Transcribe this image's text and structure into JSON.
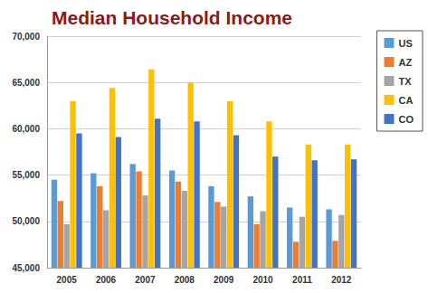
{
  "chart_data": {
    "type": "bar",
    "title": "Median Household Income",
    "categories": [
      "2005",
      "2006",
      "2007",
      "2008",
      "2009",
      "2010",
      "2011",
      "2012"
    ],
    "series": [
      {
        "name": "US",
        "color": "#5b9bd5",
        "values": [
          54500,
          55200,
          56200,
          55500,
          53800,
          52700,
          51500,
          51300
        ]
      },
      {
        "name": "AZ",
        "color": "#ed7d31",
        "values": [
          52200,
          53800,
          55400,
          54300,
          52100,
          49700,
          47800,
          47900
        ]
      },
      {
        "name": "TX",
        "color": "#a5a5a5",
        "values": [
          49700,
          51200,
          52800,
          53300,
          51600,
          51100,
          50500,
          50700
        ]
      },
      {
        "name": "CA",
        "color": "#ffc000",
        "values": [
          63000,
          64400,
          66400,
          65000,
          63000,
          60800,
          58300,
          58300
        ]
      },
      {
        "name": "CO",
        "color": "#4472c4",
        "values": [
          59500,
          59100,
          61100,
          60800,
          59300,
          57000,
          56600,
          56700
        ]
      }
    ],
    "ylim": [
      45000,
      70000
    ],
    "yticks": [
      {
        "value": 45000,
        "label": "45,000"
      },
      {
        "value": 50000,
        "label": "50,000"
      },
      {
        "value": 55000,
        "label": "55,000"
      },
      {
        "value": 60000,
        "label": "60,000"
      },
      {
        "value": 65000,
        "label": "65,000"
      },
      {
        "value": 70000,
        "label": "70,000"
      }
    ],
    "grid": true,
    "legend": "right"
  }
}
